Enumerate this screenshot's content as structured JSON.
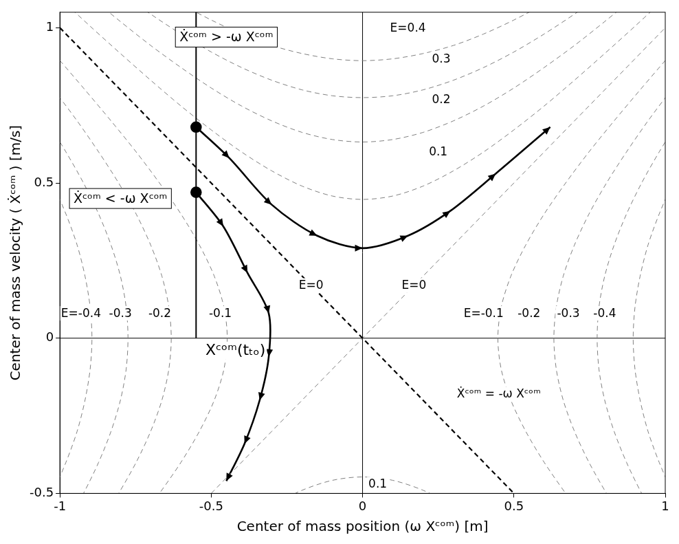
{
  "chart_data": {
    "type": "line",
    "x_label": "Center of mass position (ω Xᶜᵒᵐ) [m]",
    "y_label": "Center of mass velocity ( Ẋᶜᵒᵐ ) [m/s]",
    "xlim": [
      -1,
      1
    ],
    "xticks": [
      -1,
      -0.5,
      0,
      0.5,
      1
    ],
    "ylim": [
      -0.5,
      1.05
    ],
    "yticks": [
      -0.5,
      0,
      0.5,
      1
    ],
    "grid": false,
    "trajectories": [
      {
        "color": "#000000",
        "line_style": "solid",
        "marker": "circle",
        "x": [
          -0.55,
          -0.44,
          -0.3,
          -0.15,
          0,
          0.15,
          0.29,
          0.44,
          0.62
        ],
        "y": [
          0.68,
          0.58,
          0.43,
          0.33,
          0.29,
          0.33,
          0.41,
          0.53,
          0.68
        ]
      },
      {
        "color": "#000000",
        "line_style": "solid",
        "marker": "circle",
        "x": [
          -0.55,
          -0.46,
          -0.38,
          -0.31,
          -0.31,
          -0.34,
          -0.39,
          -0.45
        ],
        "y": [
          0.47,
          0.36,
          0.21,
          0.08,
          -0.06,
          -0.2,
          -0.34,
          -0.46
        ]
      }
    ],
    "energy_contours": [
      {
        "color": "#808080",
        "line_style": "dashed",
        "branches": [
          {
            "x": [
              -1,
              -0.9,
              -0.8,
              -0.7,
              -0.6,
              -0.5,
              -0.4,
              -0.3,
              -0.2,
              -0.1,
              0,
              0.1,
              0.2,
              0.3,
              0.4,
              0.5,
              0.6,
              0.7,
              0.8,
              0.9,
              1
            ],
            "y": [
              1.095,
              1.005,
              0.917,
              0.831,
              0.748,
              0.671,
              0.6,
              0.539,
              0.49,
              0.458,
              0.447,
              0.458,
              0.49,
              0.539,
              0.6,
              0.671,
              0.748,
              0.831,
              0.917,
              1.005,
              1.095
            ]
          },
          {
            "x": [
              -0.3,
              -0.2,
              -0.1,
              0,
              0.1,
              0.2,
              0.3
            ],
            "y": [
              -0.539,
              -0.49,
              -0.458,
              -0.447,
              -0.458,
              -0.49,
              -0.539
            ]
          }
        ]
      },
      {
        "color": "#808080",
        "line_style": "dashed",
        "branches": [
          {
            "x": [
              -1,
              -0.9,
              -0.8,
              -0.7,
              -0.6,
              -0.5,
              -0.4,
              -0.3,
              -0.2,
              -0.1,
              0,
              0.1,
              0.2,
              0.3,
              0.4,
              0.5,
              0.6,
              0.7,
              0.8,
              0.9,
              1
            ],
            "y": [
              1.183,
              1.1,
              1.02,
              0.943,
              0.872,
              0.806,
              0.748,
              0.7,
              0.663,
              0.64,
              0.632,
              0.64,
              0.663,
              0.7,
              0.748,
              0.806,
              0.872,
              0.943,
              1.02,
              1.1,
              1.183
            ]
          }
        ]
      },
      {
        "color": "#808080",
        "line_style": "dashed",
        "branches": [
          {
            "x": [
              -1,
              -0.9,
              -0.8,
              -0.7,
              -0.6,
              -0.5,
              -0.4,
              -0.3,
              -0.2,
              -0.1,
              0,
              0.1,
              0.2,
              0.3,
              0.4,
              0.5,
              0.6,
              0.7,
              0.8,
              0.9,
              1
            ],
            "y": [
              1.265,
              1.187,
              1.114,
              1.044,
              0.98,
              0.922,
              0.872,
              0.831,
              0.8,
              0.781,
              0.775,
              0.781,
              0.8,
              0.831,
              0.872,
              0.922,
              0.98,
              1.044,
              1.114,
              1.187,
              1.265
            ]
          }
        ]
      },
      {
        "color": "#808080",
        "line_style": "dashed",
        "branches": [
          {
            "x": [
              -1,
              -0.9,
              -0.8,
              -0.7,
              -0.6,
              -0.5,
              -0.4,
              -0.3,
              -0.2,
              -0.1,
              0,
              0.1,
              0.2,
              0.3,
              0.4,
              0.5,
              0.6,
              0.7,
              0.8,
              0.9,
              1
            ],
            "y": [
              1.342,
              1.269,
              1.2,
              1.136,
              1.077,
              1.025,
              0.98,
              0.943,
              0.917,
              0.9,
              0.894,
              0.9,
              0.917,
              0.943,
              0.98,
              1.025,
              1.077,
              1.136,
              1.2,
              1.269,
              1.342
            ]
          }
        ]
      },
      {
        "color": "#808080",
        "line_style": "dashed",
        "branches": [
          {
            "x": [
              0.748,
              0.671,
              0.6,
              0.539,
              0.49,
              0.458,
              0.447,
              0.458,
              0.49,
              0.539,
              0.6,
              0.671,
              0.748,
              0.831,
              0.917,
              1.005,
              1.095,
              1.187
            ],
            "y": [
              -0.6,
              -0.5,
              -0.4,
              -0.3,
              -0.2,
              -0.1,
              0,
              0.1,
              0.2,
              0.3,
              0.4,
              0.5,
              0.6,
              0.7,
              0.8,
              0.9,
              1.0,
              1.1
            ]
          },
          {
            "x": [
              -0.748,
              -0.671,
              -0.6,
              -0.539,
              -0.49,
              -0.458,
              -0.447,
              -0.458,
              -0.49,
              -0.539,
              -0.6,
              -0.671,
              -0.748,
              -0.831,
              -0.917,
              -1.005,
              -1.095,
              -1.187
            ],
            "y": [
              -0.6,
              -0.5,
              -0.4,
              -0.3,
              -0.2,
              -0.1,
              0,
              0.1,
              0.2,
              0.3,
              0.4,
              0.5,
              0.6,
              0.7,
              0.8,
              0.9,
              1.0,
              1.1
            ]
          }
        ]
      },
      {
        "color": "#808080",
        "line_style": "dashed",
        "branches": [
          {
            "x": [
              0.872,
              0.806,
              0.748,
              0.7,
              0.663,
              0.64,
              0.632,
              0.64,
              0.663,
              0.7,
              0.748,
              0.806,
              0.872,
              0.943,
              1.02,
              1.1,
              1.183,
              1.269
            ],
            "y": [
              -0.6,
              -0.5,
              -0.4,
              -0.3,
              -0.2,
              -0.1,
              0,
              0.1,
              0.2,
              0.3,
              0.4,
              0.5,
              0.6,
              0.7,
              0.8,
              0.9,
              1.0,
              1.1
            ]
          },
          {
            "x": [
              -0.872,
              -0.806,
              -0.748,
              -0.7,
              -0.663,
              -0.64,
              -0.632,
              -0.64,
              -0.663,
              -0.7,
              -0.748,
              -0.806,
              -0.872,
              -0.943,
              -1.02,
              -1.1,
              -1.183,
              -1.269
            ],
            "y": [
              -0.6,
              -0.5,
              -0.4,
              -0.3,
              -0.2,
              -0.1,
              0,
              0.1,
              0.2,
              0.3,
              0.4,
              0.5,
              0.6,
              0.7,
              0.8,
              0.9,
              1.0,
              1.1
            ]
          }
        ]
      },
      {
        "color": "#808080",
        "line_style": "dashed",
        "branches": [
          {
            "x": [
              0.98,
              0.922,
              0.872,
              0.831,
              0.8,
              0.781,
              0.775,
              0.781,
              0.8,
              0.831,
              0.872,
              0.922,
              0.98,
              1.044,
              1.114,
              1.187,
              1.265,
              1.345
            ],
            "y": [
              -0.6,
              -0.5,
              -0.4,
              -0.3,
              -0.2,
              -0.1,
              0,
              0.1,
              0.2,
              0.3,
              0.4,
              0.5,
              0.6,
              0.7,
              0.8,
              0.9,
              1.0,
              1.1
            ]
          },
          {
            "x": [
              -0.98,
              -0.922,
              -0.872,
              -0.831,
              -0.8,
              -0.781,
              -0.775,
              -0.781,
              -0.8,
              -0.831,
              -0.872,
              -0.922,
              -0.98,
              -1.044,
              -1.114,
              -1.187,
              -1.265,
              -1.345
            ],
            "y": [
              -0.6,
              -0.5,
              -0.4,
              -0.3,
              -0.2,
              -0.1,
              0,
              0.1,
              0.2,
              0.3,
              0.4,
              0.5,
              0.6,
              0.7,
              0.8,
              0.9,
              1.0,
              1.1
            ]
          }
        ]
      },
      {
        "color": "#808080",
        "line_style": "dashed",
        "branches": [
          {
            "x": [
              1.077,
              1.025,
              0.98,
              0.943,
              0.917,
              0.9,
              0.894,
              0.9,
              0.917,
              0.943,
              0.98,
              1.025,
              1.077,
              1.136,
              1.2,
              1.269,
              1.342,
              1.418
            ],
            "y": [
              -0.6,
              -0.5,
              -0.4,
              -0.3,
              -0.2,
              -0.1,
              0,
              0.1,
              0.2,
              0.3,
              0.4,
              0.5,
              0.6,
              0.7,
              0.8,
              0.9,
              1.0,
              1.1
            ]
          },
          {
            "x": [
              -1.077,
              -1.025,
              -0.98,
              -0.943,
              -0.917,
              -0.9,
              -0.894,
              -0.9,
              -0.917,
              -0.943,
              -0.98,
              -1.025,
              -1.077,
              -1.136,
              -1.2,
              -1.269,
              -1.342,
              -1.418
            ],
            "y": [
              -0.6,
              -0.5,
              -0.4,
              -0.3,
              -0.2,
              -0.1,
              0,
              0.1,
              0.2,
              0.3,
              0.4,
              0.5,
              0.6,
              0.7,
              0.8,
              0.9,
              1.0,
              1.1
            ]
          }
        ]
      }
    ],
    "zero_energy_lines": [
      {
        "color": "#000000",
        "line_style": "dashed",
        "x": [
          -1,
          0.5
        ],
        "y": [
          1,
          -0.5
        ]
      },
      {
        "color": "#808080",
        "line_style": "dashed",
        "x": [
          -0.5,
          1
        ],
        "y": [
          -0.5,
          1
        ]
      }
    ],
    "toe_off": {
      "x": -0.55,
      "y_from": 0,
      "label": "Xᶜᵒᵐ(tₜₒ)",
      "label_x": -0.42,
      "label_y": -0.04
    },
    "region_labels": [
      {
        "text": "Ẋᶜᵒᵐ > -ω Xᶜᵒᵐ",
        "x": -0.45,
        "y": 0.97
      },
      {
        "text": "Ẋᶜᵒᵐ < -ω Xᶜᵒᵐ",
        "x": -0.8,
        "y": 0.45
      }
    ],
    "annotations": [
      {
        "text": "E=0.4",
        "x": 0.15,
        "y": 1.0
      },
      {
        "text": "0.3",
        "x": 0.26,
        "y": 0.9
      },
      {
        "text": "0.2",
        "x": 0.26,
        "y": 0.77
      },
      {
        "text": "0.1",
        "x": 0.25,
        "y": 0.6
      },
      {
        "text": "E=0",
        "x": -0.17,
        "y": 0.17
      },
      {
        "text": "E=0",
        "x": 0.17,
        "y": 0.17
      },
      {
        "text": "E=-0.4",
        "x": -0.93,
        "y": 0.08
      },
      {
        "text": "-0.3",
        "x": -0.8,
        "y": 0.08
      },
      {
        "text": "-0.2",
        "x": -0.67,
        "y": 0.08
      },
      {
        "text": "-0.1",
        "x": -0.47,
        "y": 0.08
      },
      {
        "text": "E=-0.1",
        "x": 0.4,
        "y": 0.08
      },
      {
        "text": "-0.2",
        "x": 0.55,
        "y": 0.08
      },
      {
        "text": "-0.3",
        "x": 0.68,
        "y": 0.08
      },
      {
        "text": "-0.4",
        "x": 0.8,
        "y": 0.08
      },
      {
        "text": "0.1",
        "x": 0.05,
        "y": -0.47
      },
      {
        "text": "Ẋᶜᵒᵐ = -ω Xᶜᵒᵐ",
        "x": 0.45,
        "y": -0.18
      }
    ]
  }
}
